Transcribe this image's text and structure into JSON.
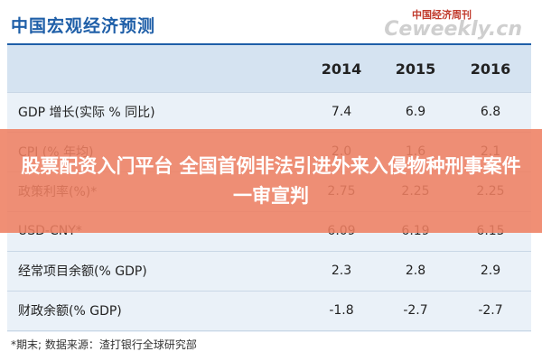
{
  "header": {
    "title": "中国宏观经济预测",
    "logo_cn": "中国经济周刊",
    "logo_en": "Ceweekly.cn"
  },
  "table": {
    "columns": [
      "2014",
      "2015",
      "2016"
    ],
    "rows": [
      [
        "GDP 增长(实际 % 同比)",
        "7.4",
        "6.9",
        "6.8"
      ],
      [
        "CPI (% 年均)",
        "2.0",
        "1.6",
        "2.1"
      ],
      [
        "政策利率(%)*",
        "2.75",
        "2.25",
        "2.25"
      ],
      [
        "USD-CNY*",
        "6.09",
        "6.19",
        "6.15"
      ],
      [
        "经常项目余额(% GDP)",
        "2.3",
        "2.8",
        "2.9"
      ],
      [
        "财政余额(% GDP)",
        "-1.8",
        "-2.7",
        "-2.7"
      ]
    ]
  },
  "footnote": "*期末;    数据来源：渣打银行全球研究部",
  "banner": "股票配资入门平台 全国首例非法引进外来入侵物种刑事案件一审宣判"
}
